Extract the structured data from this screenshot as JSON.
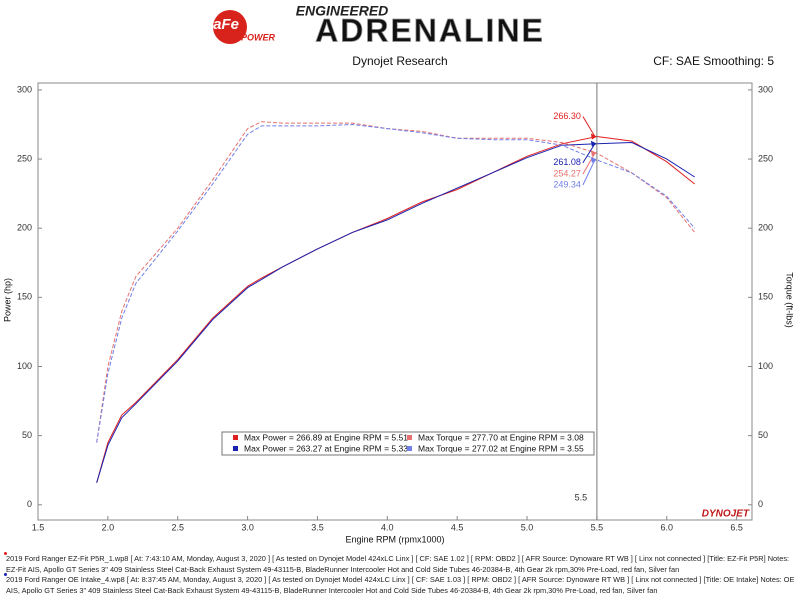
{
  "header": {
    "logo_main": "aFe",
    "logo_sub": "POWER",
    "tagline_top": "ENGINEERED",
    "tagline_main": "ADRENALINE"
  },
  "chart_data": {
    "type": "line",
    "title": "Dynojet Research",
    "subtitle": "CF: SAE Smoothing: 5",
    "x_label": "Engine RPM (rpmx1000)",
    "y_label": "Power (hp)",
    "y2_label": "Torque (ft-lbs)",
    "brand": "DYNOJET",
    "x": [
      1.92,
      2.0,
      2.1,
      2.2,
      2.5,
      2.75,
      3.0,
      3.1,
      3.25,
      3.5,
      3.75,
      4.0,
      4.25,
      4.5,
      4.75,
      5.0,
      5.25,
      5.5,
      5.75,
      6.0,
      6.2
    ],
    "series": [
      {
        "name": "Max Power = 266.89 at Engine RPM = 5.51",
        "color": "#e02020",
        "dashed": false,
        "axis": "y",
        "values": [
          16,
          45,
          65,
          74,
          105,
          135,
          158,
          164,
          172,
          185,
          197,
          207,
          219,
          228,
          240,
          252,
          261,
          266.3,
          263,
          248,
          232
        ]
      },
      {
        "name": "Max Power = 263.27 at Engine RPM = 5.33",
        "color": "#1a22b0",
        "dashed": false,
        "axis": "y",
        "values": [
          16,
          43,
          63,
          73,
          104,
          134,
          157,
          163,
          172,
          185,
          197,
          206,
          218,
          229,
          240,
          251,
          260,
          261.08,
          262,
          250,
          237
        ]
      },
      {
        "name": "Max Torque = 277.70 at Engine RPM = 3.08",
        "color": "#e87070",
        "dashed": true,
        "axis": "y2",
        "values": [
          45,
          100,
          140,
          165,
          200,
          235,
          272,
          277,
          276,
          276,
          276,
          272,
          270,
          265,
          265,
          265,
          262,
          254.27,
          240,
          222,
          197
        ]
      },
      {
        "name": "Max Torque = 277.02 at Engine RPM = 3.55",
        "color": "#7080e8",
        "dashed": true,
        "axis": "y2",
        "values": [
          45,
          95,
          135,
          160,
          198,
          232,
          268,
          274,
          274,
          274,
          275,
          272,
          269,
          265,
          264,
          264,
          260,
          249.34,
          240,
          223,
          200
        ]
      }
    ],
    "cursor": {
      "x": 5.5,
      "label": "5.5",
      "readouts": [
        {
          "value": 266.3,
          "label": "266.30",
          "color": "#e02020"
        },
        {
          "value": 261.08,
          "label": "261.08",
          "color": "#1a22b0"
        },
        {
          "value": 254.27,
          "label": "254.27",
          "color": "#e87070"
        },
        {
          "value": 249.34,
          "label": "249.34",
          "color": "#7080e8"
        }
      ]
    },
    "xlim": [
      1.5,
      6.61
    ],
    "xticks": [
      1.5,
      {
        "value": 2,
        "label": "2.0"
      },
      2.5,
      {
        "value": 3,
        "label": "3.0"
      },
      3.5,
      {
        "value": 4,
        "label": "4.0"
      },
      4.5,
      {
        "value": 5,
        "label": "5.0"
      },
      5.5,
      {
        "value": 6,
        "label": "6.0"
      },
      6.5
    ],
    "ylim": [
      -11,
      305
    ],
    "yticks": [
      0,
      50,
      100,
      150,
      200,
      250,
      300
    ],
    "y2lim": [
      -11,
      305
    ],
    "y2ticks": [
      0,
      50,
      100,
      150,
      200,
      250,
      300
    ],
    "grid": false,
    "notes": [
      {
        "color": "#e02020",
        "text": "2019 Ford Ranger EZ-Fit P5R_1.wp8 [ At: 7:43:10 AM, Monday, August 3, 2020 ] [ As tested on Dynojet Model 424xLC Linx ] [ CF: SAE 1.02 ] [ RPM: OBD2 ] [ AFR Source: Dynoware RT WB ] [ Linx not connected ] [Title: EZ-Fit P5R]  Notes:  EZ-Fit AIS, Apollo GT Series 3\" 409 Stainless Steel Cat-Back Exhaust System  49-43115-B, BladeRunner Intercooler Hot and Cold Side Tubes 46-20384-B, 4th Gear 2k rpm,30% Pre-Load, red fan, Silver fan"
      },
      {
        "color": "#1a22b0",
        "text": "2019 Ford Ranger OE Intake_4.wp8 [ At: 8:37:45 AM, Monday, August 3, 2020 ] [ As tested on Dynojet Model 424xLC Linx ] [ CF: SAE 1.03 ] [ RPM: OBD2 ] [ AFR Source: Dynoware RT WB ] [ Linx not connected ] [Title: OE Intake]  Notes: OE AIS, Apollo GT Series 3\" 409 Stainless Steel Cat-Back Exhaust System  49-43115-B, BladeRunner Intercooler Hot and Cold Side Tubes 46-20384-B, 4th Gear 2k rpm,30% Pre-Load, red fan, Silver fan"
      }
    ]
  }
}
